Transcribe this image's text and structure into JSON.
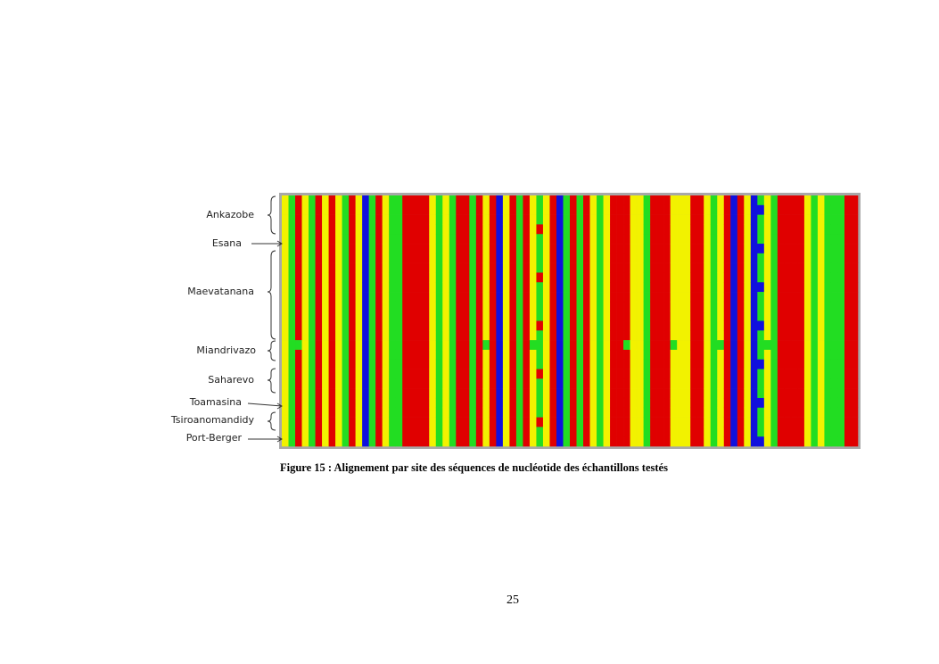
{
  "figure": {
    "labels": [
      "Ankazobe",
      "Esana",
      "Maevatanana",
      "Miandrivazo",
      "Saharevo",
      "Toamasina",
      "Tsiroanomandidy",
      "Port-Berger"
    ],
    "caption": "Figure 15 : Alignement par site des séquences de nucléotide des échantillons testés"
  },
  "page_number": "25"
}
